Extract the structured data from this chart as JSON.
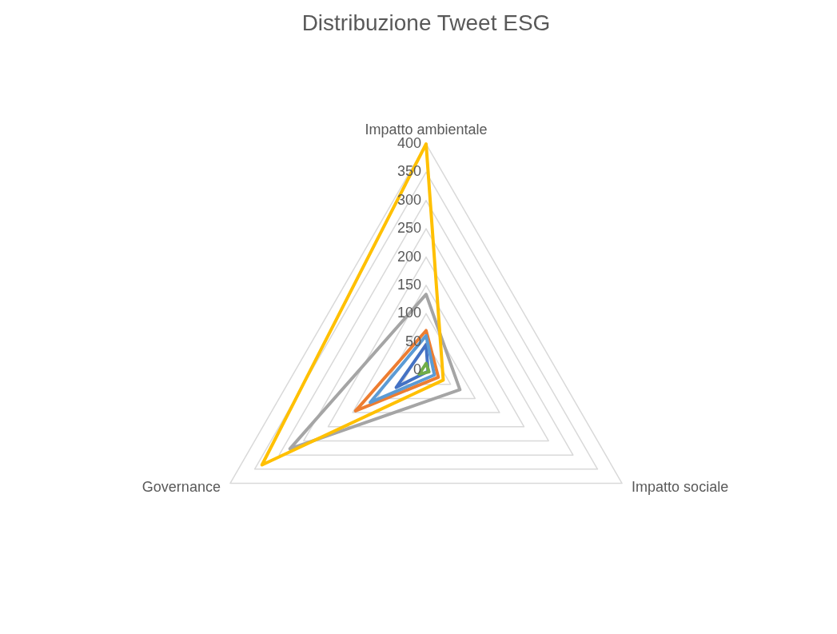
{
  "chart_data": {
    "type": "radar",
    "title": "Distribuzione Tweet ESG",
    "categories": [
      "Impatto ambientale",
      "Impatto sociale",
      "Governance"
    ],
    "series": [
      {
        "color": "#4472c4",
        "values": [
          45,
          4,
          61
        ]
      },
      {
        "color": "#ed7d31",
        "values": [
          70,
          25,
          144
        ]
      },
      {
        "color": "#a5a5a5",
        "values": [
          134,
          69,
          278
        ]
      },
      {
        "color": "#ffc000",
        "values": [
          400,
          35,
          335
        ]
      },
      {
        "color": "#5b9bd5",
        "values": [
          61,
          17,
          114
        ]
      },
      {
        "color": "#70ad47",
        "values": [
          12,
          6,
          14
        ]
      }
    ],
    "ylim": [
      0,
      400
    ],
    "yticks": [
      0,
      50,
      100,
      150,
      200,
      250,
      300,
      350,
      400
    ],
    "grid": true
  }
}
